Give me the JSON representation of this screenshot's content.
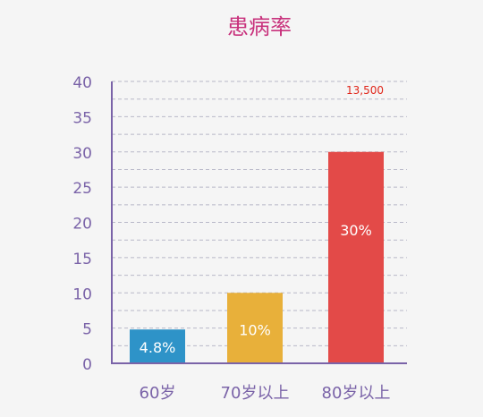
{
  "chart_data": {
    "type": "bar",
    "title": "患病率",
    "categories": [
      "60岁",
      "70岁以上",
      "80岁以上"
    ],
    "values": [
      4.8,
      10,
      30
    ],
    "data_labels": [
      "4.8%",
      "10%",
      "30%"
    ],
    "bar_colors": [
      "#2e93c8",
      "#e8b03a",
      "#e34a48"
    ],
    "ylim": [
      0,
      40
    ],
    "yticks": [
      0,
      5,
      10,
      15,
      20,
      25,
      30,
      35,
      40
    ],
    "grid": "dashed horizontal",
    "annotation": "13,500",
    "colors": {
      "title": "#c8317c",
      "axis": "#7a63a8",
      "tick_text": "#7a63a8",
      "annotation": "#e0261a",
      "grid": "#b8b8c8"
    }
  }
}
